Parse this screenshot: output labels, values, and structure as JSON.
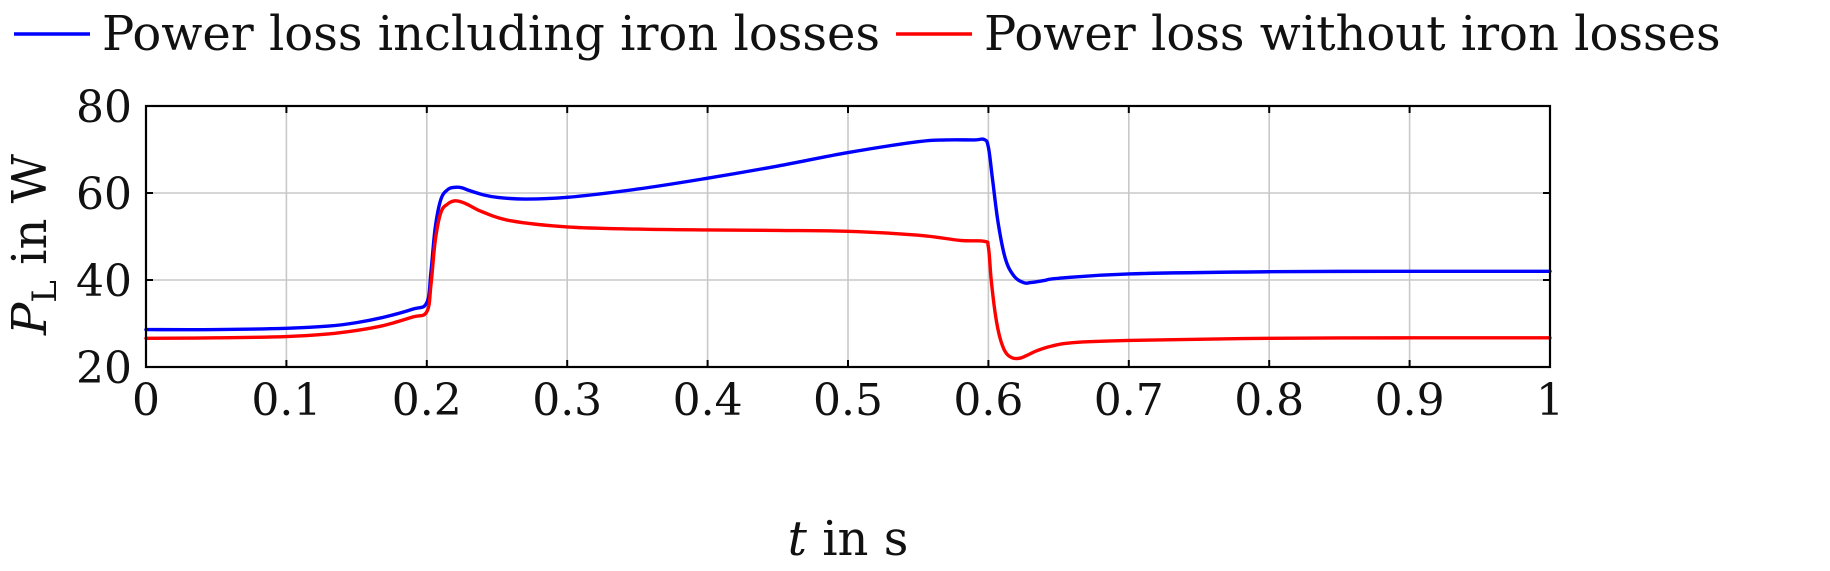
{
  "chart_data": {
    "type": "line",
    "title": "",
    "xlabel_italic": "t",
    "xlabel_rest": " in s",
    "ylabel_italic": "P",
    "ylabel_sub": "L",
    "ylabel_rest": " in W",
    "xlim": [
      0,
      1
    ],
    "ylim": [
      20,
      80
    ],
    "xticks": [
      0,
      0.1,
      0.2,
      0.3,
      0.4,
      0.5,
      0.6,
      0.7,
      0.8,
      0.9,
      1
    ],
    "xtick_labels": [
      "0",
      "0.1",
      "0.2",
      "0.3",
      "0.4",
      "0.5",
      "0.6",
      "0.7",
      "0.8",
      "0.9",
      "1"
    ],
    "yticks": [
      20,
      40,
      60,
      80
    ],
    "ytick_labels": [
      "20",
      "40",
      "60",
      "80"
    ],
    "grid": true,
    "legend_position": "top",
    "series": [
      {
        "name": "Power loss including iron losses",
        "color": "#0000ff",
        "x": [
          0,
          0.05,
          0.1,
          0.13,
          0.15,
          0.17,
          0.19,
          0.2,
          0.203,
          0.206,
          0.21,
          0.215,
          0.22,
          0.225,
          0.23,
          0.24,
          0.25,
          0.27,
          0.3,
          0.35,
          0.4,
          0.45,
          0.5,
          0.55,
          0.57,
          0.59,
          0.597,
          0.6,
          0.603,
          0.607,
          0.612,
          0.618,
          0.625,
          0.63,
          0.64,
          0.65,
          0.7,
          0.8,
          0.9,
          1
        ],
        "y": [
          28.6,
          28.6,
          28.9,
          29.4,
          30.2,
          31.5,
          33.3,
          34.8,
          42.0,
          52.0,
          58.5,
          60.8,
          61.3,
          61.2,
          60.6,
          59.6,
          59.0,
          58.6,
          59.0,
          60.9,
          63.4,
          66.2,
          69.3,
          71.8,
          72.2,
          72.2,
          72.3,
          70.5,
          63.0,
          53.0,
          45.0,
          41.0,
          39.4,
          39.4,
          39.9,
          40.4,
          41.4,
          41.9,
          42.0,
          42.0
        ]
      },
      {
        "name": "Power loss without iron losses",
        "color": "#ff0000",
        "x": [
          0,
          0.05,
          0.1,
          0.13,
          0.15,
          0.17,
          0.19,
          0.2,
          0.203,
          0.206,
          0.21,
          0.215,
          0.22,
          0.225,
          0.23,
          0.24,
          0.26,
          0.3,
          0.35,
          0.4,
          0.45,
          0.5,
          0.55,
          0.58,
          0.597,
          0.6,
          0.602,
          0.605,
          0.608,
          0.612,
          0.617,
          0.622,
          0.627,
          0.635,
          0.645,
          0.66,
          0.7,
          0.8,
          0.9,
          1
        ],
        "y": [
          26.6,
          26.7,
          27.0,
          27.6,
          28.4,
          29.6,
          31.5,
          32.7,
          39.0,
          49.0,
          55.5,
          57.5,
          58.2,
          57.9,
          57.2,
          55.6,
          53.6,
          52.2,
          51.7,
          51.5,
          51.4,
          51.2,
          50.3,
          49.1,
          48.9,
          47.5,
          40.0,
          32.0,
          27.0,
          23.5,
          22.1,
          22.0,
          22.6,
          23.8,
          24.8,
          25.6,
          26.1,
          26.6,
          26.7,
          26.7
        ]
      }
    ]
  }
}
